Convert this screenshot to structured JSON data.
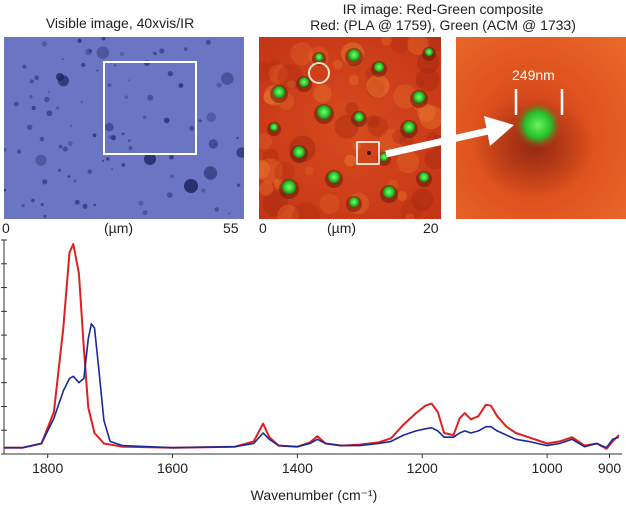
{
  "visible_panel": {
    "title": "Visible image, 40xvis/IR",
    "axis_min": "0",
    "axis_unit": "(µm)",
    "axis_max": "55"
  },
  "ir_panel": {
    "title_line1": "IR image: Red-Green composite",
    "title_line2": "Red: (PLA @ 1759), Green (ACM @ 1733)",
    "axis_min": "0",
    "axis_unit": "(µm)",
    "axis_max": "20"
  },
  "zoom_panel": {
    "scale_label": "249nm"
  },
  "colors": {
    "visible_bg": "#6a76c4",
    "ir_red": "#d8401c",
    "ir_green": "#28d030",
    "series_red": "#e02020",
    "series_blue": "#1a2a9c",
    "axis": "#333333"
  },
  "chart_data": {
    "type": "line",
    "xlabel": "Wavenumber (cm⁻¹)",
    "x_ticks": [
      "1800",
      "1600",
      "1400",
      "1200",
      "1000",
      "900"
    ],
    "x_tick_values": [
      1800,
      1600,
      1400,
      1200,
      1000,
      900
    ],
    "xlim": [
      1870,
      880
    ],
    "x_reversed": true,
    "ylim": [
      0,
      1.0
    ],
    "y_tick_labels_shown": false,
    "series": [
      {
        "color": "#e02020",
        "points": [
          [
            1870,
            0.03
          ],
          [
            1840,
            0.03
          ],
          [
            1810,
            0.05
          ],
          [
            1790,
            0.2
          ],
          [
            1775,
            0.6
          ],
          [
            1765,
            0.96
          ],
          [
            1759,
            1.0
          ],
          [
            1750,
            0.86
          ],
          [
            1742,
            0.5
          ],
          [
            1735,
            0.22
          ],
          [
            1725,
            0.1
          ],
          [
            1710,
            0.05
          ],
          [
            1680,
            0.035
          ],
          [
            1600,
            0.03
          ],
          [
            1500,
            0.035
          ],
          [
            1470,
            0.06
          ],
          [
            1455,
            0.145
          ],
          [
            1445,
            0.08
          ],
          [
            1430,
            0.04
          ],
          [
            1400,
            0.035
          ],
          [
            1380,
            0.055
          ],
          [
            1368,
            0.085
          ],
          [
            1355,
            0.05
          ],
          [
            1330,
            0.04
          ],
          [
            1300,
            0.045
          ],
          [
            1270,
            0.055
          ],
          [
            1250,
            0.075
          ],
          [
            1230,
            0.14
          ],
          [
            1210,
            0.195
          ],
          [
            1195,
            0.23
          ],
          [
            1185,
            0.24
          ],
          [
            1175,
            0.2
          ],
          [
            1165,
            0.1
          ],
          [
            1150,
            0.09
          ],
          [
            1140,
            0.17
          ],
          [
            1132,
            0.195
          ],
          [
            1122,
            0.165
          ],
          [
            1110,
            0.18
          ],
          [
            1098,
            0.235
          ],
          [
            1090,
            0.23
          ],
          [
            1080,
            0.18
          ],
          [
            1065,
            0.13
          ],
          [
            1050,
            0.1
          ],
          [
            1030,
            0.08
          ],
          [
            1000,
            0.05
          ],
          [
            980,
            0.06
          ],
          [
            960,
            0.08
          ],
          [
            940,
            0.04
          ],
          [
            920,
            0.05
          ],
          [
            905,
            0.025
          ],
          [
            895,
            0.06
          ],
          [
            885,
            0.09
          ]
        ]
      },
      {
        "color": "#1a2a9c",
        "points": [
          [
            1870,
            0.03
          ],
          [
            1840,
            0.03
          ],
          [
            1810,
            0.05
          ],
          [
            1790,
            0.17
          ],
          [
            1775,
            0.3
          ],
          [
            1765,
            0.36
          ],
          [
            1759,
            0.37
          ],
          [
            1750,
            0.34
          ],
          [
            1742,
            0.36
          ],
          [
            1735,
            0.55
          ],
          [
            1730,
            0.62
          ],
          [
            1725,
            0.6
          ],
          [
            1718,
            0.4
          ],
          [
            1710,
            0.16
          ],
          [
            1700,
            0.06
          ],
          [
            1680,
            0.04
          ],
          [
            1600,
            0.03
          ],
          [
            1500,
            0.035
          ],
          [
            1470,
            0.05
          ],
          [
            1455,
            0.1
          ],
          [
            1445,
            0.07
          ],
          [
            1430,
            0.04
          ],
          [
            1400,
            0.035
          ],
          [
            1380,
            0.05
          ],
          [
            1368,
            0.07
          ],
          [
            1355,
            0.05
          ],
          [
            1330,
            0.04
          ],
          [
            1300,
            0.04
          ],
          [
            1270,
            0.05
          ],
          [
            1250,
            0.06
          ],
          [
            1230,
            0.09
          ],
          [
            1210,
            0.11
          ],
          [
            1195,
            0.12
          ],
          [
            1185,
            0.125
          ],
          [
            1175,
            0.11
          ],
          [
            1165,
            0.08
          ],
          [
            1150,
            0.08
          ],
          [
            1140,
            0.1
          ],
          [
            1132,
            0.11
          ],
          [
            1122,
            0.1
          ],
          [
            1110,
            0.11
          ],
          [
            1098,
            0.13
          ],
          [
            1090,
            0.13
          ],
          [
            1080,
            0.11
          ],
          [
            1065,
            0.09
          ],
          [
            1050,
            0.07
          ],
          [
            1030,
            0.06
          ],
          [
            1000,
            0.04
          ],
          [
            980,
            0.05
          ],
          [
            960,
            0.07
          ],
          [
            940,
            0.035
          ],
          [
            920,
            0.05
          ],
          [
            905,
            0.03
          ],
          [
            895,
            0.07
          ],
          [
            885,
            0.08
          ]
        ]
      }
    ]
  }
}
